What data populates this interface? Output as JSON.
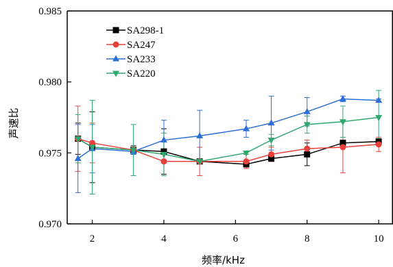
{
  "chart_data": {
    "type": "line",
    "xlabel": "频率/kHz",
    "ylabel": "声速比",
    "xlim": [
      1.3,
      10.4
    ],
    "ylim": [
      0.97,
      0.985
    ],
    "xticks": [
      2,
      4,
      6,
      8,
      10
    ],
    "yticks": [
      0.97,
      0.975,
      0.98,
      0.985
    ],
    "xtick_labels": [
      "2",
      "4",
      "6",
      "8",
      "10"
    ],
    "ytick_labels": [
      "0.970",
      "0.975",
      "0.980",
      "0.985"
    ],
    "grid": false,
    "legend_position": "top-left",
    "x": [
      1.6,
      2.0,
      3.15,
      4.0,
      5.0,
      6.3,
      7.0,
      8.0,
      9.0,
      10.0
    ],
    "series": [
      {
        "name": "SA298-1",
        "color": "#000000",
        "marker": "square",
        "values": [
          0.976,
          0.9754,
          0.9752,
          0.9751,
          0.9744,
          0.9742,
          0.9746,
          0.9749,
          0.9757,
          0.9758
        ],
        "errors": [
          0.0011,
          0.0025,
          0.0003,
          0.0016,
          0.0001,
          0.0002,
          0.0002,
          0.0008,
          0.0002,
          0.0002
        ]
      },
      {
        "name": "SA247",
        "color": "#e8403a",
        "marker": "circle",
        "values": [
          0.976,
          0.9757,
          0.9752,
          0.9744,
          0.9744,
          0.9744,
          0.9749,
          0.9753,
          0.9754,
          0.9756
        ],
        "errors": [
          0.0023,
          0.0014,
          0.0002,
          0.0001,
          0.001,
          0.0005,
          0.0005,
          0.0006,
          0.0018,
          0.0005
        ]
      },
      {
        "name": "SA233",
        "color": "#2f6fd8",
        "marker": "triangle-up",
        "values": [
          0.9746,
          0.9753,
          0.9751,
          0.9759,
          0.9762,
          0.9767,
          0.9771,
          0.9779,
          0.9788,
          0.9787
        ],
        "errors": [
          0.0024,
          0.0017,
          0.0002,
          0.0014,
          0.0018,
          0.0006,
          0.0019,
          0.001,
          0.0002,
          0.0001
        ]
      },
      {
        "name": "SA220",
        "color": "#2fa870",
        "marker": "triangle-down",
        "values": [
          0.976,
          0.9754,
          0.9752,
          0.9749,
          0.9744,
          0.975,
          0.9759,
          0.977,
          0.9772,
          0.9775
        ],
        "errors": [
          0.0017,
          0.0033,
          0.0018,
          0.0015,
          0.0001,
          0.0001,
          0.0004,
          0.0006,
          0.0011,
          0.0019
        ]
      }
    ]
  }
}
